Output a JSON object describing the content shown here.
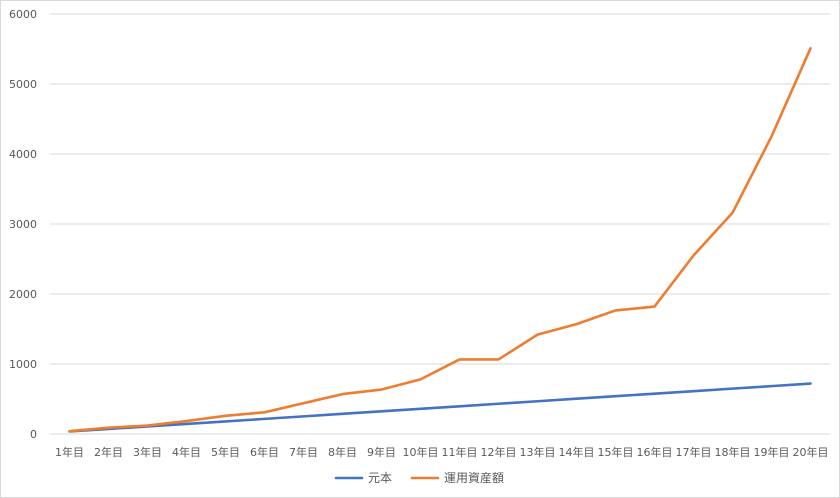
{
  "chart_data": {
    "type": "line",
    "title": "",
    "xlabel": "",
    "ylabel": "",
    "categories": [
      "1年目",
      "2年目",
      "3年目",
      "4年目",
      "5年目",
      "6年目",
      "7年目",
      "8年目",
      "9年目",
      "10年目",
      "11年目",
      "12年目",
      "13年目",
      "14年目",
      "15年目",
      "16年目",
      "17年目",
      "18年目",
      "19年目",
      "20年目"
    ],
    "ylim": [
      0,
      6000
    ],
    "yticks": [
      0,
      1000,
      2000,
      3000,
      4000,
      5000,
      6000
    ],
    "grid": true,
    "legend_position": "bottom",
    "series": [
      {
        "name": "元本",
        "color": "#4472c4",
        "values": [
          36,
          72,
          108,
          144,
          180,
          216,
          252,
          288,
          324,
          360,
          396,
          432,
          468,
          504,
          540,
          576,
          612,
          648,
          684,
          720
        ]
      },
      {
        "name": "運用資産額",
        "color": "#ed7d31",
        "values": [
          40,
          90,
          120,
          185,
          260,
          310,
          440,
          570,
          635,
          780,
          1065,
          1065,
          1420,
          1570,
          1765,
          1820,
          2550,
          3160,
          4250,
          5510
        ]
      }
    ]
  }
}
